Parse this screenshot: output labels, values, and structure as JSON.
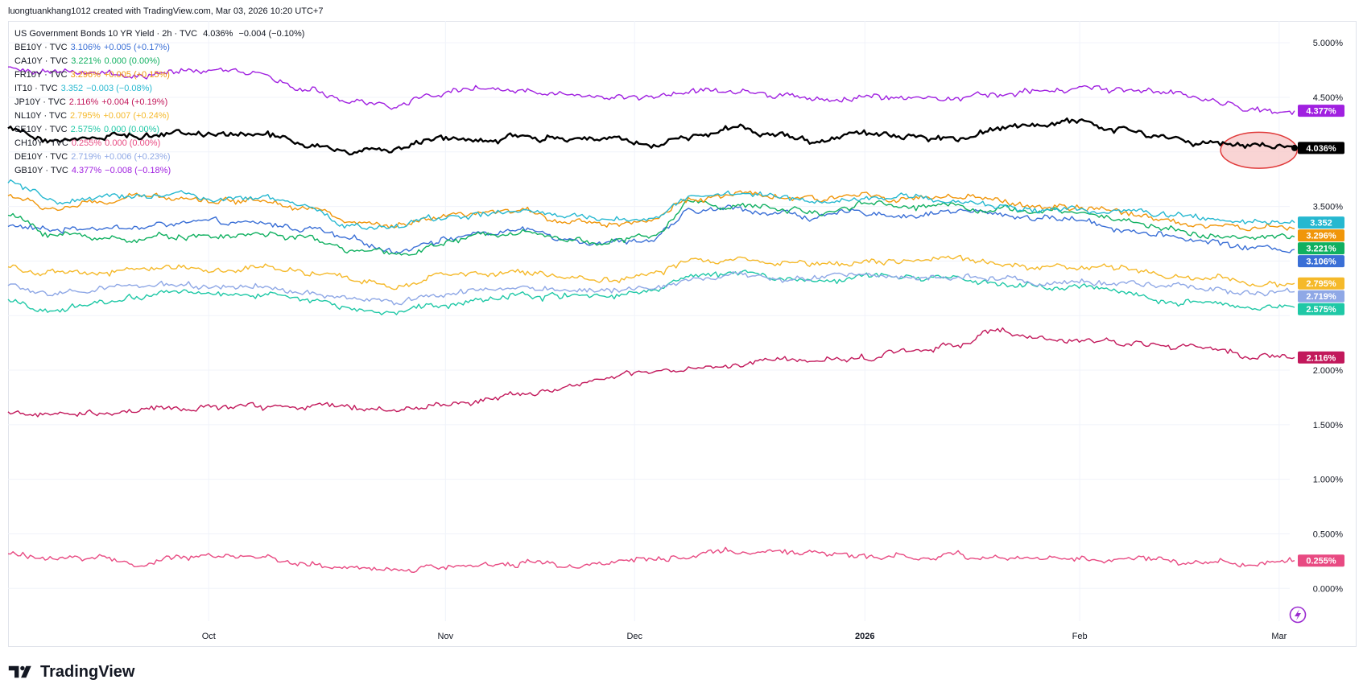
{
  "header": {
    "attribution": "luongtuankhang1012 created with TradingView.com, Mar 03, 2026 10:20 UTC+7"
  },
  "legend": {
    "main": {
      "title": "US Government Bonds 10 YR Yield · 2h · TVC",
      "value": "4.036%",
      "change": "−0.004 (−0.10%)"
    }
  },
  "footer": {
    "brand": "TradingView"
  },
  "colors": {
    "grid": "#f0f3fa",
    "axis_text": "#131722",
    "highlight_fill": "#f7c5c5",
    "highlight_stroke": "#e03a3a"
  },
  "chart_data": {
    "type": "line",
    "title": "US Government Bonds 10 YR Yield · 2h · TVC",
    "y_axis_position": "right",
    "ylim": [
      -0.3,
      5.2
    ],
    "y_ticks": [
      0,
      0.5,
      1,
      1.5,
      2,
      2.5,
      3,
      3.5,
      4,
      4.5,
      5
    ],
    "y_tick_labels_visible": [
      "0.000%",
      "0.500%",
      "1.000%",
      "1.500%",
      "2.000%",
      "3.500%",
      "4.500%",
      "5.000%"
    ],
    "x_ticks": [
      {
        "label": "Oct",
        "bold": false,
        "pos": 0.156
      },
      {
        "label": "Nov",
        "bold": false,
        "pos": 0.34
      },
      {
        "label": "Dec",
        "bold": false,
        "pos": 0.487
      },
      {
        "label": "2026",
        "bold": true,
        "pos": 0.666
      },
      {
        "label": "Feb",
        "bold": false,
        "pos": 0.833
      },
      {
        "label": "Mar",
        "bold": false,
        "pos": 0.988
      }
    ],
    "grid": true,
    "legend_placement": "top-left",
    "highlight": {
      "type": "ellipse",
      "x_from": 0.94,
      "x_to": 0.997,
      "y_from": 3.85,
      "y_to": 4.18
    },
    "series": [
      {
        "name": "BE10Y · TVC",
        "value_label": "3.106%",
        "change": "+0.005 (+0.17%)",
        "color": "#3a6fd6",
        "last": 3.106,
        "anchors": [
          3.32,
          3.28,
          3.32,
          3.3,
          3.35,
          3.34,
          3.33,
          3.3,
          3.18,
          3.1,
          3.2,
          3.25,
          3.28,
          3.22,
          3.18,
          3.2,
          3.45,
          3.48,
          3.44,
          3.4,
          3.45,
          3.42,
          3.46,
          3.43,
          3.4,
          3.38,
          3.3,
          3.22,
          3.18,
          3.12,
          3.106
        ]
      },
      {
        "name": "CA10Y · TVC",
        "value_label": "3.221%",
        "change": "0.000 (0.00%)",
        "color": "#10b060",
        "last": 3.221,
        "anchors": [
          3.42,
          3.25,
          3.22,
          3.2,
          3.24,
          3.22,
          3.25,
          3.2,
          3.1,
          3.05,
          3.15,
          3.22,
          3.3,
          3.2,
          3.18,
          3.22,
          3.55,
          3.5,
          3.48,
          3.45,
          3.55,
          3.5,
          3.52,
          3.48,
          3.45,
          3.44,
          3.38,
          3.3,
          3.24,
          3.2,
          3.221
        ]
      },
      {
        "name": "FR10Y · TVC",
        "value_label": "3.296%",
        "change": "+0.005 (+0.15%)",
        "color": "#f0960a",
        "last": 3.296,
        "anchors": [
          3.6,
          3.48,
          3.52,
          3.58,
          3.6,
          3.55,
          3.57,
          3.5,
          3.35,
          3.3,
          3.38,
          3.42,
          3.45,
          3.38,
          3.35,
          3.38,
          3.58,
          3.6,
          3.58,
          3.55,
          3.62,
          3.58,
          3.58,
          3.55,
          3.5,
          3.48,
          3.44,
          3.38,
          3.33,
          3.3,
          3.296
        ]
      },
      {
        "name": "IT10 · TVC",
        "value_label": "3.352",
        "change": "−0.003 (−0.08%)",
        "color": "#26b8d0",
        "last": 3.352,
        "anchors": [
          3.72,
          3.55,
          3.55,
          3.6,
          3.62,
          3.55,
          3.57,
          3.48,
          3.32,
          3.3,
          3.4,
          3.42,
          3.45,
          3.4,
          3.38,
          3.4,
          3.6,
          3.62,
          3.58,
          3.55,
          3.6,
          3.58,
          3.55,
          3.5,
          3.48,
          3.46,
          3.46,
          3.42,
          3.38,
          3.34,
          3.352
        ]
      },
      {
        "name": "JP10Y · TVC",
        "value_label": "2.116%",
        "change": "+0.004 (+0.19%)",
        "color": "#c2185b",
        "last": 2.116,
        "anchors": [
          1.62,
          1.58,
          1.6,
          1.62,
          1.65,
          1.66,
          1.66,
          1.68,
          1.65,
          1.64,
          1.68,
          1.72,
          1.8,
          1.85,
          1.92,
          1.98,
          2.0,
          2.03,
          2.1,
          2.08,
          2.12,
          2.18,
          2.23,
          2.36,
          2.28,
          2.25,
          2.26,
          2.24,
          2.18,
          2.14,
          2.116
        ]
      },
      {
        "name": "NL10Y · TVC",
        "value_label": "2.795%",
        "change": "+0.007 (+0.24%)",
        "color": "#f5b92a",
        "last": 2.795,
        "anchors": [
          2.95,
          2.88,
          2.88,
          2.92,
          2.95,
          2.92,
          2.93,
          2.88,
          2.82,
          2.78,
          2.85,
          2.88,
          2.9,
          2.86,
          2.84,
          2.88,
          3.0,
          3.02,
          3.0,
          2.98,
          3.02,
          3.0,
          3.0,
          2.98,
          2.95,
          2.94,
          2.92,
          2.88,
          2.86,
          2.8,
          2.795
        ]
      },
      {
        "name": "SE10Y · TVC",
        "value_label": "2.575%",
        "change": "0.000 (0.00%)",
        "color": "#1fc8a6",
        "last": 2.575,
        "anchors": [
          2.62,
          2.55,
          2.6,
          2.68,
          2.72,
          2.68,
          2.7,
          2.65,
          2.56,
          2.52,
          2.62,
          2.65,
          2.7,
          2.68,
          2.7,
          2.75,
          2.9,
          2.88,
          2.85,
          2.8,
          2.88,
          2.85,
          2.82,
          2.78,
          2.75,
          2.76,
          2.7,
          2.62,
          2.6,
          2.56,
          2.575
        ]
      },
      {
        "name": "CH10Y · TVC",
        "value_label": "0.255%",
        "change": "0.000 (0.00%)",
        "color": "#e84a82",
        "last": 0.255,
        "anchors": [
          0.32,
          0.28,
          0.26,
          0.24,
          0.27,
          0.3,
          0.28,
          0.22,
          0.18,
          0.16,
          0.2,
          0.22,
          0.24,
          0.22,
          0.25,
          0.28,
          0.3,
          0.32,
          0.34,
          0.32,
          0.3,
          0.3,
          0.32,
          0.28,
          0.26,
          0.28,
          0.28,
          0.26,
          0.24,
          0.22,
          0.255
        ]
      },
      {
        "name": "DE10Y · TVC",
        "value_label": "2.719%",
        "change": "+0.006 (+0.23%)",
        "color": "#8fa8e6",
        "last": 2.719,
        "anchors": [
          2.78,
          2.7,
          2.72,
          2.76,
          2.78,
          2.75,
          2.76,
          2.7,
          2.65,
          2.62,
          2.7,
          2.72,
          2.75,
          2.72,
          2.72,
          2.76,
          2.86,
          2.88,
          2.86,
          2.84,
          2.88,
          2.86,
          2.86,
          2.84,
          2.82,
          2.83,
          2.8,
          2.76,
          2.74,
          2.7,
          2.719
        ]
      },
      {
        "name": "GB10Y · TVC",
        "value_label": "4.377%",
        "change": "−0.008 (−0.18%)",
        "color": "#a020e0",
        "last": 4.377,
        "anchors": [
          4.78,
          4.75,
          4.72,
          4.7,
          4.72,
          4.74,
          4.7,
          4.55,
          4.45,
          4.42,
          4.55,
          4.6,
          4.55,
          4.52,
          4.48,
          4.5,
          4.55,
          4.52,
          4.5,
          4.48,
          4.52,
          4.5,
          4.48,
          4.52,
          4.55,
          4.55,
          4.58,
          4.55,
          4.48,
          4.4,
          4.377
        ]
      },
      {
        "name": "US10Y",
        "value_label": "4.036%",
        "change": "−0.004 (−0.10%)",
        "color": "#000000",
        "last": 4.036,
        "in_legend": false,
        "anchors": [
          4.22,
          4.1,
          4.12,
          4.15,
          4.18,
          4.16,
          4.14,
          4.05,
          3.98,
          4.0,
          4.12,
          4.1,
          4.15,
          4.12,
          4.1,
          4.05,
          4.15,
          4.2,
          4.16,
          4.12,
          4.18,
          4.15,
          4.14,
          4.22,
          4.25,
          4.28,
          4.22,
          4.15,
          4.08,
          4.05,
          4.036
        ]
      }
    ]
  }
}
